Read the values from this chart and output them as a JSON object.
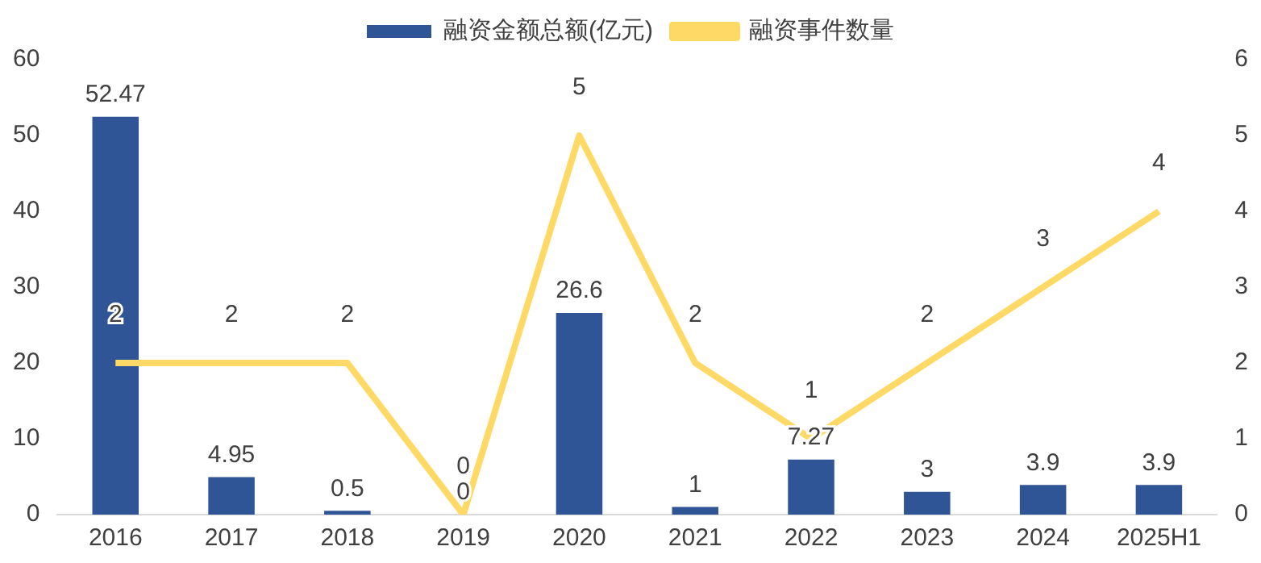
{
  "chart_data": {
    "type": "bar",
    "categories": [
      "2016",
      "2017",
      "2018",
      "2019",
      "2020",
      "2021",
      "2022",
      "2023",
      "2024",
      "2025H1"
    ],
    "series": [
      {
        "name": "融资金额总额(亿元)",
        "color": "#2f5597",
        "values": [
          52.47,
          4.95,
          0.5,
          0,
          26.6,
          1,
          7.27,
          3,
          3.9,
          3.9
        ]
      },
      {
        "name": "融资事件数量",
        "type": "line",
        "axis": "y2",
        "color": "#ffd966",
        "values": [
          2,
          2,
          2,
          0,
          5,
          2,
          1,
          2,
          3,
          4
        ]
      }
    ],
    "ylim": [
      0,
      60
    ],
    "yticks": [
      0,
      10,
      20,
      30,
      40,
      50,
      60
    ],
    "y2lim": [
      0,
      6
    ],
    "y2ticks": [
      0,
      1,
      2,
      3,
      4,
      5,
      6
    ],
    "grid": false,
    "legend": "top",
    "marker": "none",
    "line_style": "solid",
    "data_labels": true
  }
}
